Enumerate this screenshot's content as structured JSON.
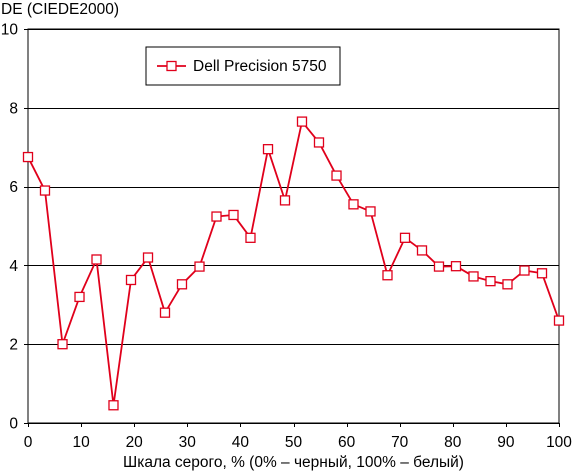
{
  "chart_data": {
    "type": "line",
    "ylabel": "DE (CIEDE2000)",
    "xlabel": "Шкала серого, % (0% – черный, 100% – белый)",
    "xlim": [
      0,
      100
    ],
    "ylim": [
      0,
      10
    ],
    "xticks": [
      0,
      10,
      20,
      30,
      40,
      50,
      60,
      70,
      80,
      90,
      100
    ],
    "yticks": [
      0,
      2,
      4,
      6,
      8,
      10
    ],
    "grid": "horizontal",
    "legend": "top-left",
    "x": [
      0,
      3.2,
      6.5,
      9.7,
      12.9,
      16.1,
      19.4,
      22.6,
      25.8,
      29.0,
      32.3,
      35.5,
      38.7,
      41.9,
      45.2,
      48.4,
      51.6,
      54.8,
      58.1,
      61.3,
      64.5,
      67.7,
      71.0,
      74.2,
      77.4,
      80.6,
      83.9,
      87.1,
      90.3,
      93.5,
      96.8,
      100
    ],
    "series": [
      {
        "name": "Dell Precision 5750",
        "color": "#e0001b",
        "marker": "square",
        "values": [
          6.75,
          5.9,
          2.0,
          3.2,
          4.15,
          0.45,
          3.63,
          4.2,
          2.8,
          3.52,
          3.97,
          5.24,
          5.28,
          4.7,
          6.95,
          5.65,
          7.65,
          7.12,
          6.28,
          5.55,
          5.37,
          3.75,
          4.7,
          4.38,
          3.97,
          3.98,
          3.72,
          3.6,
          3.52,
          3.87,
          3.8,
          2.6
        ]
      }
    ]
  }
}
